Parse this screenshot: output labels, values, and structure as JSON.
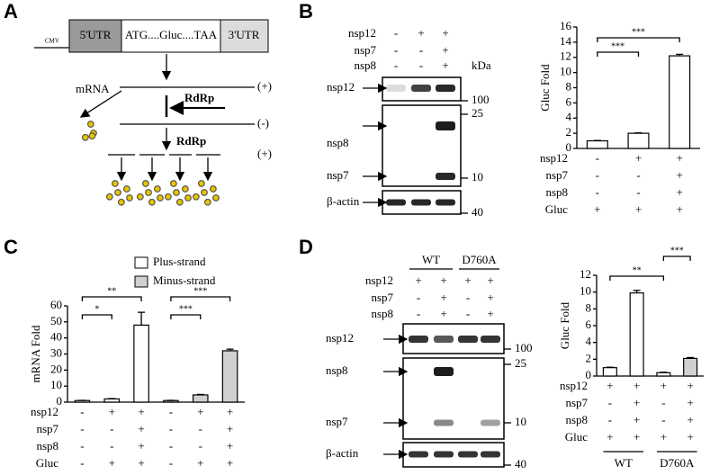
{
  "panels": [
    "A",
    "B",
    "C",
    "D"
  ],
  "diagram": {
    "promoter": "CMV",
    "utr5": "5'UTR",
    "orf": "ATG....Gluc....TAA",
    "utr3": "3'UTR",
    "mrna": "mRNA",
    "plus": "(+)",
    "minus": "(-)",
    "rdrp": "RdRp"
  },
  "blot_b": {
    "header": [
      {
        "label": "nsp12",
        "signs": [
          "-",
          "+",
          "+"
        ]
      },
      {
        "label": "nsp7",
        "signs": [
          "-",
          "-",
          "+"
        ]
      },
      {
        "label": "nsp8",
        "signs": [
          "-",
          "-",
          "+"
        ]
      }
    ],
    "unit": "kDa",
    "bands": [
      "nsp12",
      "nsp8",
      "nsp7",
      "β-actin"
    ],
    "markers": [
      100,
      25,
      10,
      40
    ]
  },
  "blot_d": {
    "groups": [
      "WT",
      "D760A"
    ],
    "header": [
      {
        "label": "nsp12",
        "signs": [
          "+",
          "+",
          "+",
          "+"
        ]
      },
      {
        "label": "nsp7",
        "signs": [
          "-",
          "+",
          "-",
          "+"
        ]
      },
      {
        "label": "nsp8",
        "signs": [
          "-",
          "+",
          "-",
          "+"
        ]
      }
    ],
    "bands": [
      "nsp12",
      "nsp8",
      "nsp7",
      "β-actin"
    ],
    "markers": [
      100,
      25,
      10,
      40
    ]
  },
  "chart_data": [
    {
      "type": "bar",
      "ylabel": "Gluc Fold",
      "ylim": [
        0,
        16
      ],
      "yticks": [
        0,
        2,
        4,
        6,
        8,
        10,
        12,
        14,
        16
      ],
      "categories": [
        null,
        null,
        null
      ],
      "values": [
        1,
        2,
        12.2
      ],
      "errors": [
        0.05,
        0.05,
        0.2
      ],
      "color": "#ffffff",
      "significance": [
        {
          "label": "***",
          "bars": [
            0,
            1
          ]
        },
        {
          "label": "***",
          "bars": [
            0,
            2
          ]
        }
      ],
      "conditions": [
        {
          "label": "nsp12",
          "signs": [
            "-",
            "+",
            "+"
          ]
        },
        {
          "label": "nsp7",
          "signs": [
            "-",
            "-",
            "+"
          ]
        },
        {
          "label": "nsp8",
          "signs": [
            "-",
            "-",
            "+"
          ]
        },
        {
          "label": "Gluc",
          "signs": [
            "+",
            "+",
            "+"
          ]
        }
      ]
    },
    {
      "type": "bar",
      "ylabel": "mRNA Fold",
      "ylim": [
        0,
        60
      ],
      "yticks": [
        0,
        10,
        20,
        30,
        40,
        50,
        60
      ],
      "categories": [
        null,
        null,
        null,
        null,
        null,
        null
      ],
      "series": [
        {
          "name": "Plus-strand",
          "color": "#ffffff",
          "values": [
            1,
            2,
            48,
            null,
            null,
            null
          ],
          "errors": [
            0.1,
            0.2,
            8,
            null,
            null,
            null
          ]
        },
        {
          "name": "Minus-strand",
          "color": "#d0d0d0",
          "values": [
            null,
            null,
            null,
            1,
            4.5,
            32
          ],
          "errors": [
            null,
            null,
            null,
            0.1,
            0.3,
            1
          ]
        }
      ],
      "significance": [
        {
          "label": "*",
          "bars": [
            0,
            1
          ]
        },
        {
          "label": "**",
          "bars": [
            0,
            2
          ]
        },
        {
          "label": "***",
          "bars": [
            3,
            4
          ]
        },
        {
          "label": "***",
          "bars": [
            3,
            5
          ]
        }
      ],
      "conditions": [
        {
          "label": "nsp12",
          "signs": [
            "-",
            "+",
            "+",
            "-",
            "+",
            "+"
          ]
        },
        {
          "label": "nsp7",
          "signs": [
            "-",
            "-",
            "+",
            "-",
            "-",
            "+"
          ]
        },
        {
          "label": "nsp8",
          "signs": [
            "-",
            "-",
            "+",
            "-",
            "-",
            "+"
          ]
        },
        {
          "label": "Gluc",
          "signs": [
            "-",
            "+",
            "+",
            "-",
            "+",
            "+"
          ]
        }
      ]
    },
    {
      "type": "bar",
      "ylabel": "Gluc Fold",
      "ylim": [
        0,
        12
      ],
      "yticks": [
        0,
        2,
        4,
        6,
        8,
        10,
        12
      ],
      "categories": [
        null,
        null,
        null,
        null
      ],
      "values": [
        1,
        9.9,
        0.4,
        2.1
      ],
      "errors": [
        0.05,
        0.3,
        0.05,
        0.1
      ],
      "colors": [
        "#ffffff",
        "#ffffff",
        "#ffffff",
        "#d0d0d0"
      ],
      "significance": [
        {
          "label": "**",
          "bars": [
            0,
            2
          ]
        },
        {
          "label": "***",
          "bars": [
            2,
            3
          ]
        }
      ],
      "conditions": [
        {
          "label": "nsp12",
          "signs": [
            "+",
            "+",
            "+",
            "+"
          ]
        },
        {
          "label": "nsp7",
          "signs": [
            "-",
            "+",
            "-",
            "+"
          ]
        },
        {
          "label": "nsp8",
          "signs": [
            "-",
            "+",
            "-",
            "+"
          ]
        },
        {
          "label": "Gluc",
          "signs": [
            "+",
            "+",
            "+",
            "+"
          ]
        }
      ],
      "groups": [
        {
          "label": "WT",
          "bars": [
            0,
            1
          ]
        },
        {
          "label": "D760A",
          "bars": [
            2,
            3
          ]
        }
      ]
    }
  ]
}
